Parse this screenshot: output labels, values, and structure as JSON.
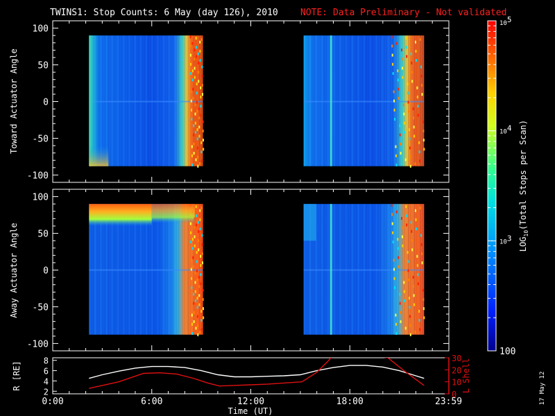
{
  "header": {
    "title": "TWINS1: Stop Counts:  6 May (day 126), 2010",
    "note": "NOTE: Data Preliminary - Not validated",
    "note_color": "#ff2020"
  },
  "side_date": "17 May 12",
  "chart_data": [
    {
      "type": "heatmap",
      "name": "toward",
      "ylabel": "Toward Actuator Angle",
      "ylim": [
        -110,
        110
      ],
      "yticks": [
        -100,
        -50,
        0,
        50,
        100
      ],
      "xlim": [
        0,
        24
      ],
      "data_intervals": [
        [
          2.2,
          9.1
        ],
        [
          15.2,
          22.5
        ]
      ],
      "angle_range": [
        -88,
        90
      ],
      "dominant_level": "1.6e2 to 5e2 (blue)",
      "edge_highlight": "orange-red stripes near 8.5-9.1 UT and 20.5-22.5 UT",
      "vertical_streak_ut": 16.8
    },
    {
      "type": "heatmap",
      "name": "away",
      "ylabel": "Away Actuator Angle",
      "ylim": [
        -110,
        110
      ],
      "yticks": [
        -100,
        -50,
        0,
        50,
        100
      ],
      "xlim": [
        0,
        24
      ],
      "data_intervals": [
        [
          2.2,
          9.1
        ],
        [
          15.2,
          22.5
        ]
      ],
      "angle_range": [
        -88,
        90
      ],
      "bright_band": "approx 65-90 deg, orange/yellow, 2.2-6 UT",
      "vertical_streak_ut": 16.8
    },
    {
      "type": "line",
      "name": "orbit",
      "ylabel_left": "R [RE]",
      "ylabel_right": "L Shell",
      "ylim_left": [
        1.5,
        8.5
      ],
      "yticks_left": [
        2,
        4,
        6,
        8
      ],
      "ylim_right": [
        0,
        30
      ],
      "yticks_right": [
        0,
        10,
        20,
        30
      ],
      "xlabel": "Time (UT)",
      "xtick_labels": [
        "0:00",
        "6:00",
        "12:00",
        "18:00",
        "23:59"
      ],
      "xticks": [
        0,
        6,
        12,
        18,
        23.98
      ],
      "series": [
        {
          "name": "R",
          "color": "#ffffff",
          "x": [
            2.2,
            3,
            4,
            5,
            6,
            7,
            8,
            9,
            10,
            11,
            12,
            13,
            14,
            15,
            16,
            17,
            18,
            19,
            20,
            21,
            22,
            22.5
          ],
          "y": [
            4.5,
            5.2,
            5.9,
            6.5,
            6.8,
            6.8,
            6.6,
            6.0,
            5.2,
            4.8,
            4.8,
            4.9,
            5.0,
            5.2,
            6.0,
            6.6,
            7.0,
            7.0,
            6.7,
            6.0,
            5.0,
            4.5
          ]
        },
        {
          "name": "L Shell",
          "color": "#e01010",
          "x": [
            2.2,
            4,
            5.5,
            6.5,
            7.5,
            8.5,
            9.4,
            10.1,
            11,
            12,
            13,
            14,
            15.1,
            16,
            16.6,
            17,
            19,
            20.3,
            21.3,
            22.5
          ],
          "y": [
            4.5,
            10,
            17,
            17.5,
            16.5,
            13,
            9,
            6.5,
            7,
            7.5,
            8,
            9,
            10,
            18,
            26,
            32,
            32,
            30,
            19,
            7
          ]
        }
      ]
    }
  ],
  "colorbar": {
    "label": "LOG10(Total Stops per Scan)",
    "label_main": "LOG",
    "label_sub": "10",
    "label_rest": "(Total Stops per Scan)",
    "tick_labels": [
      "10^5",
      "10^4",
      "10^3",
      "100"
    ],
    "tick_values": [
      100000,
      10000,
      1000,
      100
    ],
    "range": [
      100,
      100000
    ]
  }
}
